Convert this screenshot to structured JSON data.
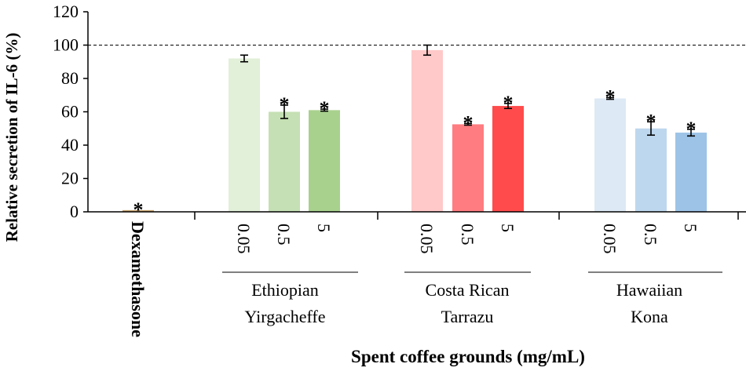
{
  "chart_data": {
    "type": "bar",
    "title": "",
    "ylabel": "Relative secretion of IL-6 (%)",
    "xlabel": "Spent coffee grounds (mg/mL)",
    "ylim": [
      0,
      120
    ],
    "yticks": [
      "0",
      "20",
      "40",
      "60",
      "80",
      "100",
      "120"
    ],
    "reference_line": 100,
    "control": {
      "label": "Dexamethasone",
      "value": 1,
      "error": 0,
      "significant": true,
      "color": "#c6a06a"
    },
    "groups": [
      {
        "name_line1": "Ethiopian",
        "name_line2": "Yirgacheffe",
        "categories": [
          "0.05",
          "0.5",
          "5"
        ],
        "values": [
          92,
          60,
          61
        ],
        "errors": [
          2,
          4,
          0.6
        ],
        "significant": [
          false,
          true,
          true
        ],
        "colors": [
          "#e2efd9",
          "#c5e0b4",
          "#a9d18e"
        ]
      },
      {
        "name_line1": "Costa Rican",
        "name_line2": "Tarrazu",
        "categories": [
          "0.05",
          "0.5",
          "5"
        ],
        "values": [
          97,
          52.5,
          63.5
        ],
        "errors": [
          3,
          0.5,
          1.5
        ],
        "significant": [
          false,
          true,
          true
        ],
        "colors": [
          "#ffc9c9",
          "#ff7c80",
          "#ff4b4b"
        ]
      },
      {
        "name_line1": "Hawaiian",
        "name_line2": "Kona",
        "categories": [
          "0.05",
          "0.5",
          "5"
        ],
        "values": [
          68,
          50,
          47.5
        ],
        "errors": [
          0.5,
          4,
          2
        ],
        "significant": [
          true,
          true,
          true
        ],
        "colors": [
          "#dde9f5",
          "#bdd7ee",
          "#9dc3e6"
        ]
      }
    ],
    "significance_marker": "*"
  }
}
